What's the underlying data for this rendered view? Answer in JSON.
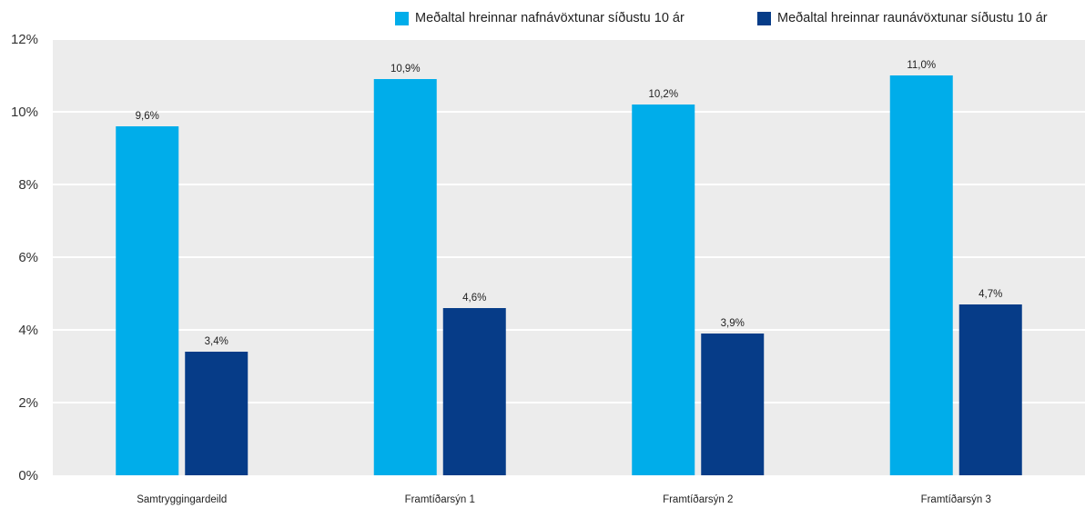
{
  "chart_data": {
    "type": "bar",
    "title": "",
    "xlabel": "",
    "ylabel": "",
    "categories": [
      "Samtryggingardeild",
      "Framtíðarsýn 1",
      "Framtíðarsýn 2",
      "Framtíðarsýn 3"
    ],
    "series": [
      {
        "name": "Meðaltal hreinnar nafnávöxtunar síðustu 10 ár",
        "values": [
          9.6,
          10.9,
          10.2,
          11.0
        ],
        "labels": [
          "9,6%",
          "10,9%",
          "10,2%",
          "11,0%"
        ],
        "color": "#00adea"
      },
      {
        "name": "Meðaltal hreinnar raunávöxtunar síðustu 10 ár",
        "values": [
          3.4,
          4.6,
          3.9,
          4.7
        ],
        "labels": [
          "3,4%",
          "4,6%",
          "3,9%",
          "4,7%"
        ],
        "color": "#063c88"
      }
    ],
    "ylim": [
      0,
      12
    ],
    "yticks": [
      0,
      2,
      4,
      6,
      8,
      10,
      12
    ],
    "ytick_labels": [
      "0%",
      "2%",
      "4%",
      "6%",
      "8%",
      "10%",
      "12%"
    ],
    "grid": true,
    "legend_position": "top-right",
    "plot_background": "#ececec",
    "gridline_color": "#ffffff"
  }
}
